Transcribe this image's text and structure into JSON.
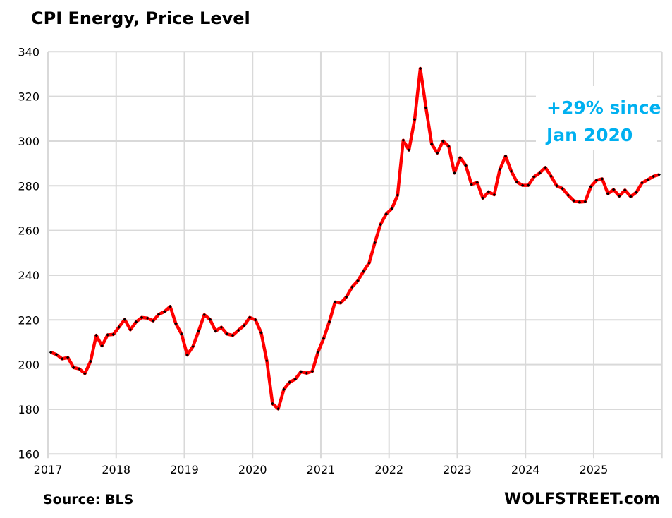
{
  "chart_data": {
    "type": "line",
    "title": "CPI Energy, Price Level",
    "xlabel": "",
    "ylabel": "",
    "ylim": [
      160,
      340
    ],
    "yticks": [
      160,
      180,
      200,
      220,
      240,
      260,
      280,
      300,
      320,
      340
    ],
    "xlim": [
      "2017-01",
      "2025-12"
    ],
    "xtick_labels": [
      "2017",
      "2018",
      "2019",
      "2020",
      "2021",
      "2022",
      "2023",
      "2024",
      "2025"
    ],
    "grid": true,
    "legend": null,
    "annotation": {
      "lines": [
        "+29% since",
        "Jan 2020"
      ],
      "color": "#00B0F0",
      "placement": "top-right"
    },
    "source": "Source: BLS",
    "watermark": "WOLFSTREET.com",
    "series": [
      {
        "name": "CPI Energy",
        "color": "#FF0000",
        "marker_color": "#000000",
        "start": "2017-01",
        "frequency": "monthly",
        "values": [
          205.5,
          204.5,
          202.6,
          203.2,
          198.7,
          198.1,
          196.0,
          201.5,
          213.1,
          208.4,
          213.3,
          213.5,
          216.8,
          220.2,
          215.6,
          219.1,
          221.1,
          220.8,
          219.6,
          222.5,
          223.7,
          226.0,
          218.3,
          213.7,
          204.3,
          208.1,
          215.0,
          222.3,
          220.2,
          215.0,
          216.7,
          213.7,
          213.1,
          215.4,
          217.5,
          221.1,
          220.0,
          214.3,
          201.7,
          182.5,
          180.2,
          188.9,
          192.1,
          193.5,
          196.8,
          196.2,
          197.0,
          205.6,
          211.7,
          219.2,
          228.0,
          227.6,
          230.3,
          234.7,
          237.5,
          241.7,
          245.5,
          254.5,
          262.7,
          267.4,
          269.8,
          275.8,
          300.4,
          296.0,
          309.7,
          332.5,
          314.9,
          298.7,
          294.7,
          300.0,
          297.7,
          285.7,
          292.6,
          289.1,
          280.6,
          281.5,
          274.5,
          277.3,
          276.0,
          287.4,
          293.3,
          286.5,
          281.7,
          280.2,
          280.2,
          284.0,
          285.7,
          288.2,
          284.3,
          280.0,
          278.8,
          275.8,
          273.3,
          272.7,
          272.9,
          279.6,
          282.5,
          283.1,
          276.5,
          278.3,
          275.4,
          278.1,
          275.2,
          277.1,
          281.3,
          282.7,
          284.2,
          285.0
        ]
      }
    ]
  }
}
